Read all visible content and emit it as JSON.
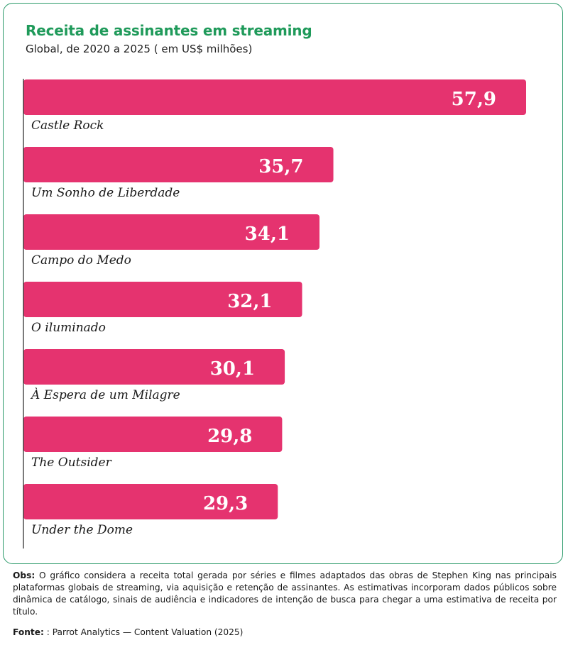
{
  "header": {
    "title": "Receita de assinantes em streaming",
    "subtitle": "Global, de 2020 a 2025 ( em US$ milhões)"
  },
  "chart_data": {
    "type": "bar",
    "orientation": "horizontal",
    "categories": [
      "Castle Rock",
      "Um Sonho de Liberdade",
      "Campo do Medo",
      "O iluminado",
      "À Espera de um Milagre",
      "The Outsider",
      "Under the Dome"
    ],
    "values": [
      57.9,
      35.7,
      34.1,
      32.1,
      30.1,
      29.8,
      29.3
    ],
    "value_labels": [
      "57,9",
      "35,7",
      "34,1",
      "32,1",
      "30,1",
      "29,8",
      "29,3"
    ],
    "title": "Receita de assinantes em streaming",
    "subtitle": "Global, de 2020 a 2025 ( em US$ milhões)",
    "xlabel": "",
    "ylabel": "",
    "xlim": [
      0,
      57.9
    ],
    "grid": false,
    "legend": "none",
    "bar_color": "#e5336f"
  },
  "footer": {
    "obs_label": "Obs:",
    "obs_text": "O gráfico considera a receita total gerada por séries e filmes adaptados das obras de Stephen King nas principais plataformas globais de streaming, via aquisição e retenção de assinantes. As estimativas incorporam dados públicos sobre dinâmica de catálogo, sinais de audiência e indicadores de intenção de busca para chegar a uma estimativa de receita por título.",
    "source_label": "Fonte:",
    "source_text": ": Parrot Analytics — Content Valuation (2025)"
  },
  "colors": {
    "accent": "#1f9a5a",
    "border": "#2b9a6a",
    "bar": "#e5336f"
  }
}
